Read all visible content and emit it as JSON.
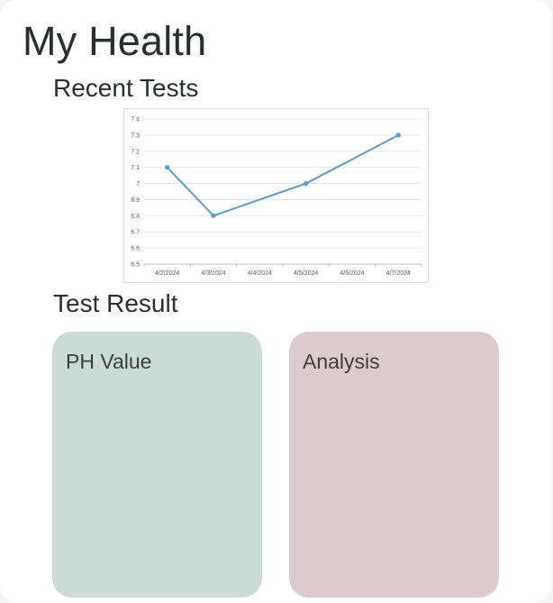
{
  "header": {
    "title": "My Health"
  },
  "sections": {
    "recent_tests": "Recent Tests",
    "test_result": "Test Result"
  },
  "chart_data": {
    "type": "line",
    "title": "",
    "xlabel": "",
    "ylabel": "",
    "categories": [
      "4/2/2024",
      "4/3/2024",
      "4/4/2024",
      "4/5/2024",
      "4/6/2024",
      "4/7/2024"
    ],
    "points": [
      {
        "x": "4/2/2024",
        "y": 7.1
      },
      {
        "x": "4/3/2024",
        "y": 6.8
      },
      {
        "x": "4/5/2024",
        "y": 7.0
      },
      {
        "x": "4/7/2024",
        "y": 7.3
      }
    ],
    "ylim": [
      6.5,
      7.4
    ],
    "yticks": [
      "6.5",
      "6.6",
      "6.7",
      "6.8",
      "6.9",
      "7",
      "7.1",
      "7.2",
      "7.3",
      "7.4"
    ],
    "grid": true,
    "line_color": "#5b9bd5"
  },
  "tiles": [
    {
      "label": "PH Value",
      "color": "#c9ddd6"
    },
    {
      "label": "Analysis",
      "color": "#dec9cf"
    }
  ]
}
